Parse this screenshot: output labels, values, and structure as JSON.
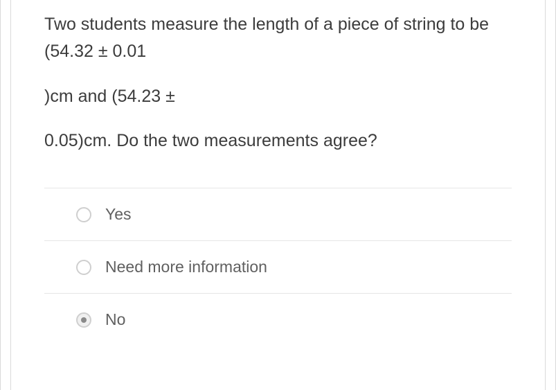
{
  "question": {
    "paragraphs": [
      "Two students measure the length of a piece of string to be (54.32 ± 0.01",
      ")cm and (54.23 ±",
      "0.05)cm. Do the two measurements agree?"
    ]
  },
  "options": [
    {
      "id": "yes",
      "label": "Yes",
      "selected": false
    },
    {
      "id": "more",
      "label": "Need more information",
      "selected": false
    },
    {
      "id": "no",
      "label": "No",
      "selected": true
    }
  ],
  "colors": {
    "border": "#d9d9d9",
    "divider": "#e6e6e6",
    "question_text": "#3c3c3c",
    "option_text": "#606060",
    "radio_border": "#cfcfcf",
    "radio_selected_bg": "#f0f0f0",
    "radio_dot": "#8a8a8a",
    "background": "#ffffff"
  },
  "typography": {
    "question_fontsize": 25,
    "option_fontsize": 23,
    "weight": 300
  }
}
